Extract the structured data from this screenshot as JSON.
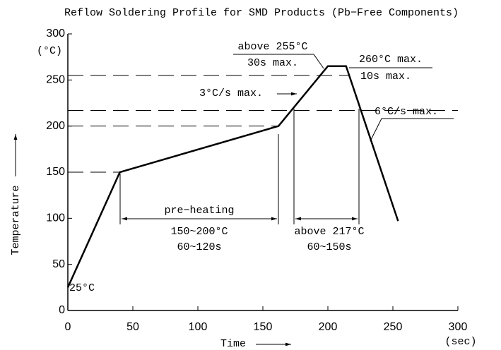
{
  "chart_data": {
    "type": "line",
    "title": "Reflow Soldering Profile for SMD Products (Pb−Free Components)",
    "x_label": "Time",
    "y_label": "Temperature",
    "x_unit": "(sec)",
    "y_unit": "(°C)",
    "xlim": [
      0,
      300
    ],
    "xticks": [
      0,
      50,
      100,
      150,
      200,
      250,
      300
    ],
    "ylim": [
      0,
      300
    ],
    "yticks": [
      0,
      50,
      100,
      150,
      200,
      250,
      300
    ],
    "series": [
      {
        "color": "#000000",
        "x": [
          0,
          40,
          162,
          200,
          214,
          254
        ],
        "values": [
          25,
          150,
          200,
          265,
          265,
          97
        ]
      }
    ],
    "reference_lines": [
      255,
      217,
      200,
      150
    ],
    "annotations": [
      "25°C",
      "above 255°C",
      "30s max.",
      "260°C max.",
      "10s max.",
      "3°C/s max.",
      "6°C/s max.",
      "pre−heating",
      "150~200°C",
      "60~120s",
      "above 217°C",
      "60~150s"
    ]
  }
}
